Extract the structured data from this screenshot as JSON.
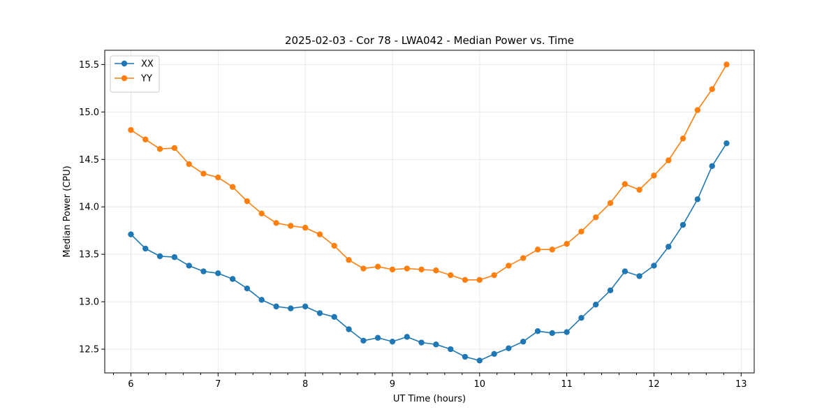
{
  "chart_data": {
    "type": "line",
    "title": "2025-02-03 - Cor 78 - LWA042 - Median Power vs. Time",
    "xlabel": "UT Time (hours)",
    "ylabel": "Median Power (CPU)",
    "xlim": [
      5.7,
      13.15
    ],
    "ylim": [
      12.25,
      15.65
    ],
    "xticks": [
      6,
      7,
      8,
      9,
      10,
      11,
      12,
      13
    ],
    "xtick_labels": [
      "6",
      "7",
      "8",
      "9",
      "10",
      "11",
      "12",
      "13"
    ],
    "yticks": [
      12.5,
      13.0,
      13.5,
      14.0,
      14.5,
      15.0,
      15.5
    ],
    "ytick_labels": [
      "12.5",
      "13.0",
      "13.5",
      "14.0",
      "14.5",
      "15.0",
      "15.5"
    ],
    "x_minor_step": 0.2,
    "grid": true,
    "legend_position": "top-left",
    "x": [
      6.0,
      6.167,
      6.333,
      6.5,
      6.667,
      6.833,
      7.0,
      7.167,
      7.333,
      7.5,
      7.667,
      7.833,
      8.0,
      8.167,
      8.333,
      8.5,
      8.667,
      8.833,
      9.0,
      9.167,
      9.333,
      9.5,
      9.667,
      9.833,
      10.0,
      10.167,
      10.333,
      10.5,
      10.667,
      10.833,
      11.0,
      11.167,
      11.333,
      11.5,
      11.667,
      11.833,
      12.0,
      12.167,
      12.333,
      12.5,
      12.667,
      12.833
    ],
    "series": [
      {
        "name": "XX",
        "color": "#1f77b4",
        "values": [
          13.71,
          13.56,
          13.48,
          13.47,
          13.38,
          13.32,
          13.3,
          13.24,
          13.14,
          13.02,
          12.95,
          12.93,
          12.95,
          12.88,
          12.84,
          12.71,
          12.59,
          12.62,
          12.58,
          12.63,
          12.57,
          12.55,
          12.5,
          12.42,
          12.38,
          12.45,
          12.51,
          12.58,
          12.69,
          12.67,
          12.68,
          12.83,
          12.97,
          13.12,
          13.32,
          13.27,
          13.38,
          13.58,
          13.81,
          14.08,
          14.43,
          14.67
        ]
      },
      {
        "name": "YY",
        "color": "#ff7f0e",
        "values": [
          14.81,
          14.71,
          14.61,
          14.62,
          14.45,
          14.35,
          14.31,
          14.21,
          14.06,
          13.93,
          13.83,
          13.8,
          13.78,
          13.71,
          13.59,
          13.44,
          13.35,
          13.37,
          13.34,
          13.35,
          13.34,
          13.33,
          13.28,
          13.23,
          13.23,
          13.28,
          13.38,
          13.46,
          13.55,
          13.55,
          13.61,
          13.74,
          13.89,
          14.04,
          14.24,
          14.18,
          14.33,
          14.49,
          14.72,
          15.02,
          15.24,
          15.5
        ]
      }
    ]
  }
}
